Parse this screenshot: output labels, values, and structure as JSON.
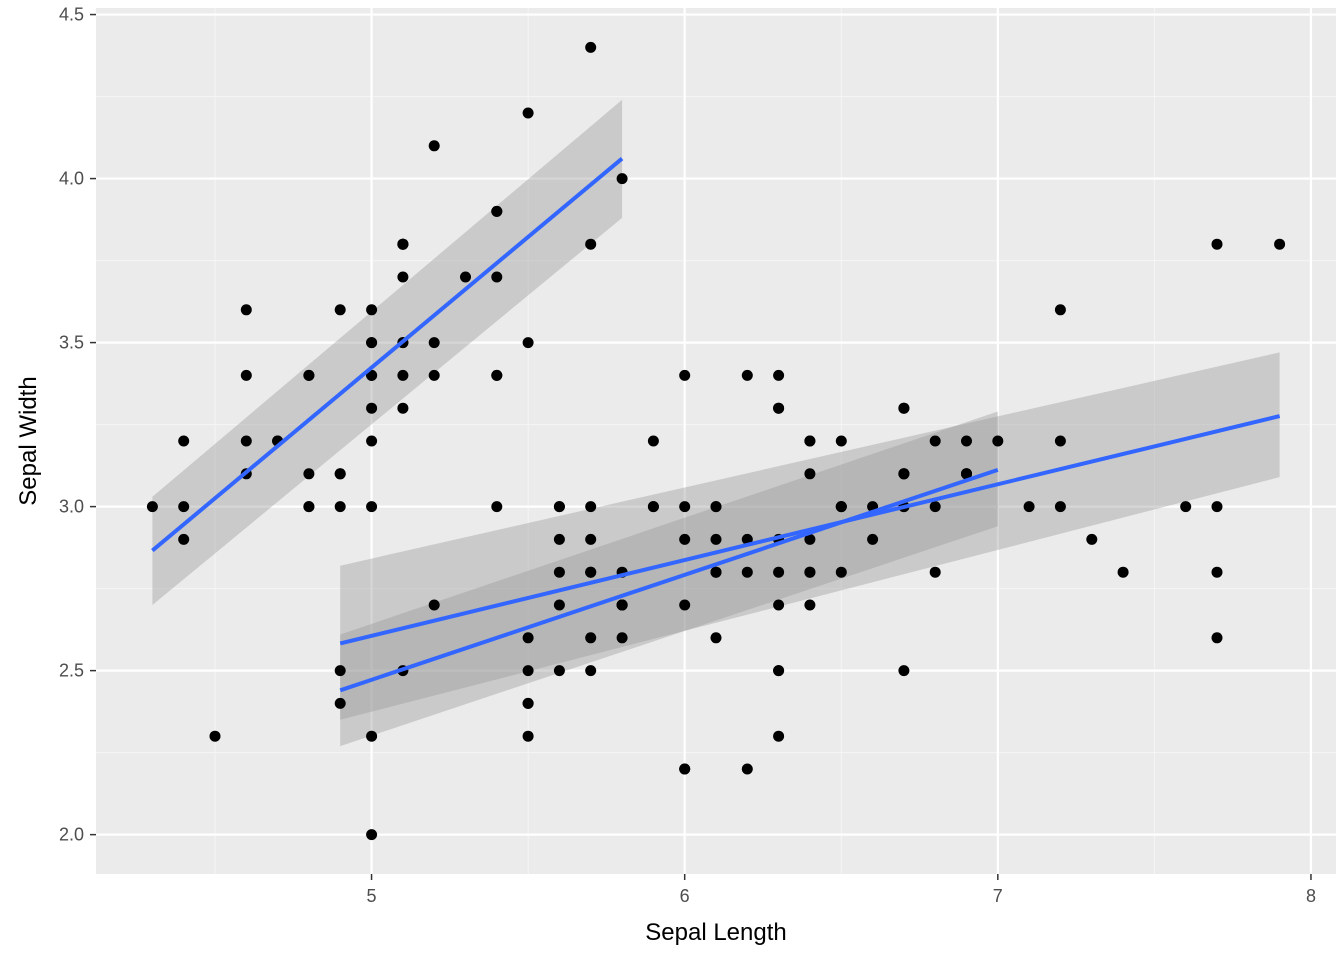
{
  "chart_data": {
    "type": "scatter",
    "title": "",
    "xlabel": "Sepal Length",
    "ylabel": "Sepal Width",
    "xlim": [
      4.12,
      8.08
    ],
    "ylim": [
      1.88,
      4.52
    ],
    "x_ticks": [
      5,
      6,
      7,
      8
    ],
    "x_tick_labels": [
      "5",
      "6",
      "7",
      "8"
    ],
    "y_ticks": [
      2.0,
      2.5,
      3.0,
      3.5,
      4.0,
      4.5
    ],
    "y_tick_labels": [
      "2.0",
      "2.5",
      "3.0",
      "3.5",
      "4.0",
      "4.5"
    ],
    "grid": true,
    "points": [
      [
        5.1,
        3.5
      ],
      [
        4.9,
        3.0
      ],
      [
        4.7,
        3.2
      ],
      [
        4.6,
        3.1
      ],
      [
        5.0,
        3.6
      ],
      [
        5.4,
        3.9
      ],
      [
        4.6,
        3.4
      ],
      [
        5.0,
        3.4
      ],
      [
        4.4,
        2.9
      ],
      [
        4.9,
        3.1
      ],
      [
        5.4,
        3.7
      ],
      [
        4.8,
        3.4
      ],
      [
        4.8,
        3.0
      ],
      [
        4.3,
        3.0
      ],
      [
        5.8,
        4.0
      ],
      [
        5.7,
        4.4
      ],
      [
        5.4,
        3.9
      ],
      [
        5.1,
        3.5
      ],
      [
        5.7,
        3.8
      ],
      [
        5.1,
        3.8
      ],
      [
        5.4,
        3.4
      ],
      [
        5.1,
        3.7
      ],
      [
        4.6,
        3.6
      ],
      [
        5.1,
        3.3
      ],
      [
        4.8,
        3.4
      ],
      [
        5.0,
        3.0
      ],
      [
        5.0,
        3.4
      ],
      [
        5.2,
        3.5
      ],
      [
        5.2,
        3.4
      ],
      [
        4.7,
        3.2
      ],
      [
        4.8,
        3.1
      ],
      [
        5.4,
        3.4
      ],
      [
        5.2,
        4.1
      ],
      [
        5.5,
        4.2
      ],
      [
        4.9,
        3.1
      ],
      [
        5.0,
        3.2
      ],
      [
        5.5,
        3.5
      ],
      [
        4.9,
        3.6
      ],
      [
        4.4,
        3.0
      ],
      [
        5.1,
        3.4
      ],
      [
        5.0,
        3.5
      ],
      [
        4.5,
        2.3
      ],
      [
        4.4,
        3.2
      ],
      [
        5.0,
        3.5
      ],
      [
        5.1,
        3.8
      ],
      [
        4.8,
        3.0
      ],
      [
        5.1,
        3.8
      ],
      [
        4.6,
        3.2
      ],
      [
        5.3,
        3.7
      ],
      [
        5.0,
        3.3
      ],
      [
        7.0,
        3.2
      ],
      [
        6.4,
        3.2
      ],
      [
        6.9,
        3.1
      ],
      [
        5.5,
        2.3
      ],
      [
        6.5,
        2.8
      ],
      [
        5.7,
        2.8
      ],
      [
        6.3,
        3.3
      ],
      [
        4.9,
        2.4
      ],
      [
        6.6,
        2.9
      ],
      [
        5.2,
        2.7
      ],
      [
        5.0,
        2.0
      ],
      [
        5.9,
        3.0
      ],
      [
        6.0,
        2.2
      ],
      [
        6.1,
        2.9
      ],
      [
        5.6,
        2.9
      ],
      [
        6.7,
        3.1
      ],
      [
        5.6,
        3.0
      ],
      [
        5.8,
        2.7
      ],
      [
        6.2,
        2.2
      ],
      [
        5.6,
        2.5
      ],
      [
        5.9,
        3.2
      ],
      [
        6.1,
        2.8
      ],
      [
        6.3,
        2.5
      ],
      [
        6.1,
        2.8
      ],
      [
        6.4,
        2.9
      ],
      [
        6.6,
        3.0
      ],
      [
        6.8,
        2.8
      ],
      [
        6.7,
        3.0
      ],
      [
        6.0,
        2.9
      ],
      [
        5.7,
        2.6
      ],
      [
        5.5,
        2.4
      ],
      [
        5.5,
        2.4
      ],
      [
        5.8,
        2.7
      ],
      [
        6.0,
        2.7
      ],
      [
        5.4,
        3.0
      ],
      [
        6.0,
        3.4
      ],
      [
        6.7,
        3.1
      ],
      [
        6.3,
        2.3
      ],
      [
        5.6,
        3.0
      ],
      [
        5.5,
        2.5
      ],
      [
        5.5,
        2.6
      ],
      [
        6.1,
        3.0
      ],
      [
        5.8,
        2.6
      ],
      [
        5.0,
        2.3
      ],
      [
        5.6,
        2.7
      ],
      [
        5.7,
        3.0
      ],
      [
        5.7,
        2.9
      ],
      [
        6.2,
        2.9
      ],
      [
        5.1,
        2.5
      ],
      [
        5.7,
        2.8
      ],
      [
        6.3,
        3.3
      ],
      [
        5.8,
        2.7
      ],
      [
        7.1,
        3.0
      ],
      [
        6.3,
        2.9
      ],
      [
        6.5,
        3.0
      ],
      [
        7.6,
        3.0
      ],
      [
        4.9,
        2.5
      ],
      [
        7.3,
        2.9
      ],
      [
        6.7,
        2.5
      ],
      [
        7.2,
        3.6
      ],
      [
        6.5,
        3.2
      ],
      [
        6.4,
        2.7
      ],
      [
        6.8,
        3.0
      ],
      [
        5.7,
        2.5
      ],
      [
        5.8,
        2.8
      ],
      [
        6.4,
        3.2
      ],
      [
        6.5,
        3.0
      ],
      [
        7.7,
        3.8
      ],
      [
        7.7,
        2.6
      ],
      [
        6.0,
        2.2
      ],
      [
        6.9,
        3.2
      ],
      [
        5.6,
        2.8
      ],
      [
        7.7,
        2.8
      ],
      [
        6.3,
        2.7
      ],
      [
        6.7,
        3.3
      ],
      [
        7.2,
        3.2
      ],
      [
        6.2,
        2.8
      ],
      [
        6.1,
        3.0
      ],
      [
        6.4,
        2.8
      ],
      [
        7.2,
        3.0
      ],
      [
        7.4,
        2.8
      ],
      [
        7.9,
        3.8
      ],
      [
        6.4,
        2.8
      ],
      [
        6.3,
        2.8
      ],
      [
        6.1,
        2.6
      ],
      [
        7.7,
        3.0
      ],
      [
        6.3,
        3.4
      ],
      [
        6.4,
        3.1
      ],
      [
        6.0,
        3.0
      ],
      [
        6.9,
        3.1
      ],
      [
        6.7,
        3.1
      ],
      [
        6.9,
        3.1
      ],
      [
        5.8,
        2.7
      ],
      [
        6.8,
        3.2
      ],
      [
        6.7,
        3.3
      ],
      [
        6.7,
        3.0
      ],
      [
        6.3,
        2.5
      ],
      [
        6.5,
        3.0
      ],
      [
        6.2,
        3.4
      ],
      [
        5.9,
        3.0
      ]
    ],
    "fits": [
      {
        "x": [
          4.3,
          5.8
        ],
        "y": [
          2.866,
          4.061
        ],
        "ci_lower": [
          2.7,
          3.88
        ],
        "ci_upper": [
          3.03,
          4.24
        ]
      },
      {
        "x": [
          4.9,
          7.0
        ],
        "y": [
          2.44,
          3.112
        ],
        "ci_lower": [
          2.27,
          2.94
        ],
        "ci_upper": [
          2.61,
          3.29
        ]
      },
      {
        "x": [
          4.9,
          7.9
        ],
        "y": [
          2.583,
          3.276
        ],
        "ci_lower": [
          2.35,
          3.09
        ],
        "ci_upper": [
          2.82,
          3.47
        ]
      }
    ],
    "colors": {
      "panel": "#ebebeb",
      "grid_major": "#ffffff",
      "grid_minor": "#f5f5f5",
      "point": "#000000",
      "fit_line": "#3366ff",
      "ribbon": "#999999"
    }
  }
}
